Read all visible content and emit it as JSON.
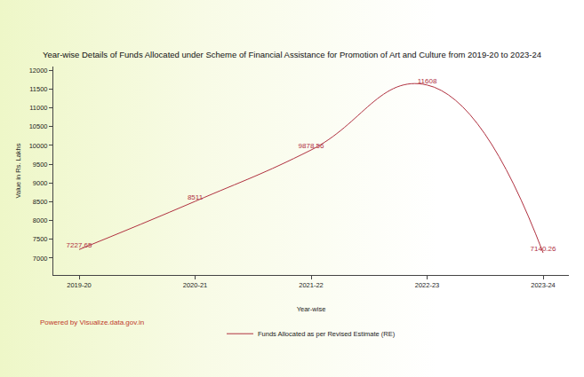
{
  "chart_data": {
    "type": "line",
    "title": "Year-wise Details of Funds Allocated under Scheme of Financial Assistance for Promotion of Art and Culture from 2019-20 to 2023-24",
    "x_label": "Year-wise",
    "y_label": "Value in Rs. Lakhs",
    "annotations": [
      "Powered by Visualize.data.gov.in"
    ],
    "categories": [
      "2019-20",
      "2020-21",
      "2021-22",
      "2022-23",
      "2023-24"
    ],
    "series": [
      {
        "name": "Funds Allocated as per Revised Estimate (RE)",
        "color": "#b0303f",
        "values": [
          7227.65,
          8511,
          9878.56,
          11608,
          7140.26
        ]
      }
    ],
    "ylim": [
      6550,
      12100
    ],
    "yticks": [
      7000,
      7500,
      8000,
      8500,
      9000,
      9500,
      10000,
      10500,
      11000,
      11500,
      12000
    ],
    "grid": false,
    "legend": "bottom",
    "data_labels": true,
    "line_style": "smooth"
  }
}
